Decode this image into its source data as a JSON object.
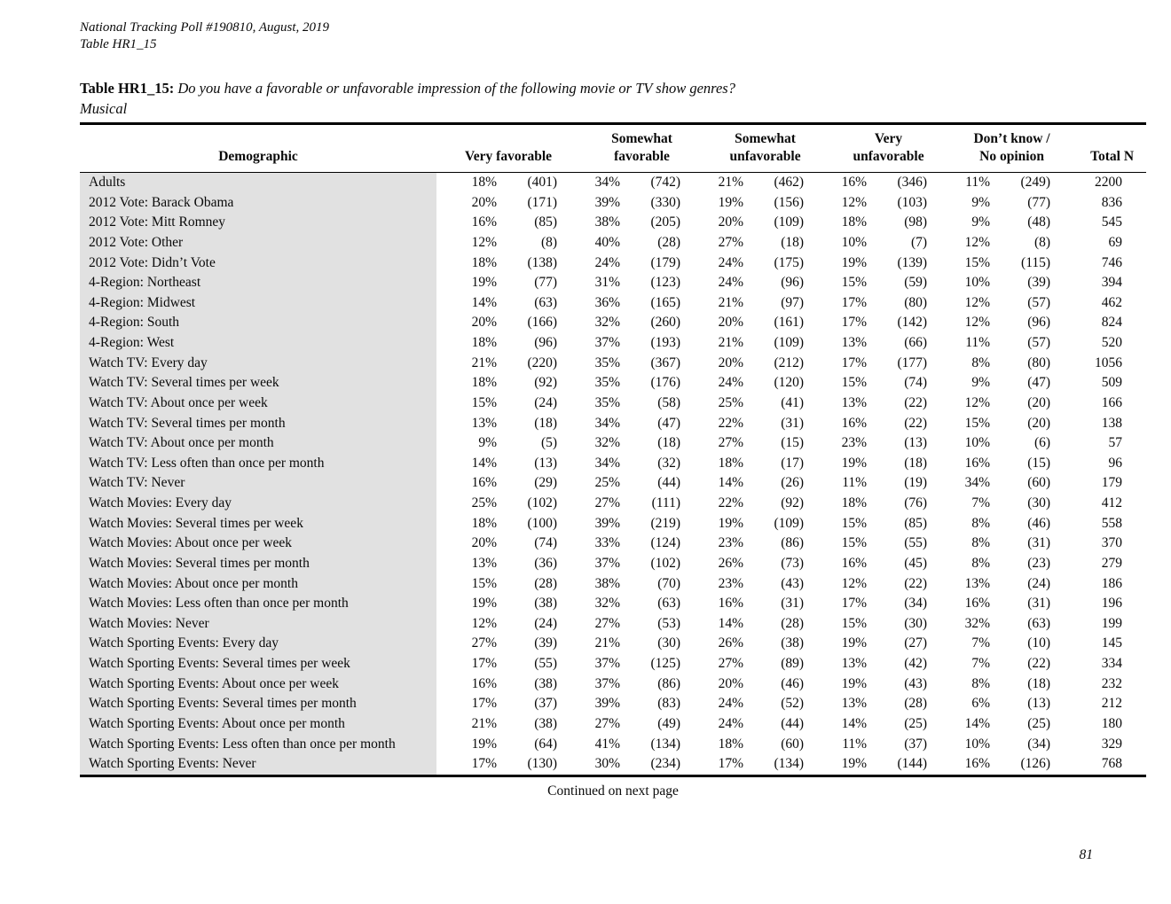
{
  "header": {
    "line1": "National Tracking Poll #190810, August, 2019",
    "line2": "Table HR1_15"
  },
  "title": {
    "label": "Table HR1_15:",
    "question": "Do you have a favorable or unfavorable impression of the following movie or TV show genres?",
    "subtitle": "Musical"
  },
  "table": {
    "columns": {
      "demographic": "Demographic",
      "groups": [
        {
          "line1": "",
          "line2": "Very favorable"
        },
        {
          "line1": "Somewhat",
          "line2": "favorable"
        },
        {
          "line1": "Somewhat",
          "line2": "unfavorable"
        },
        {
          "line1": "Very",
          "line2": "unfavorable"
        },
        {
          "line1": "Don’t know /",
          "line2": "No opinion"
        }
      ],
      "total": "Total N"
    },
    "rows": [
      {
        "demographic": "Adults",
        "cells": [
          "18%",
          "(401)",
          "34%",
          "(742)",
          "21%",
          "(462)",
          "16%",
          "(346)",
          "11%",
          "(249)"
        ],
        "total": "2200"
      },
      {
        "demographic": "2012 Vote: Barack Obama",
        "cells": [
          "20%",
          "(171)",
          "39%",
          "(330)",
          "19%",
          "(156)",
          "12%",
          "(103)",
          "9%",
          "(77)"
        ],
        "total": "836"
      },
      {
        "demographic": "2012 Vote: Mitt Romney",
        "cells": [
          "16%",
          "(85)",
          "38%",
          "(205)",
          "20%",
          "(109)",
          "18%",
          "(98)",
          "9%",
          "(48)"
        ],
        "total": "545"
      },
      {
        "demographic": "2012 Vote: Other",
        "cells": [
          "12%",
          "(8)",
          "40%",
          "(28)",
          "27%",
          "(18)",
          "10%",
          "(7)",
          "12%",
          "(8)"
        ],
        "total": "69"
      },
      {
        "demographic": "2012 Vote: Didn’t Vote",
        "cells": [
          "18%",
          "(138)",
          "24%",
          "(179)",
          "24%",
          "(175)",
          "19%",
          "(139)",
          "15%",
          "(115)"
        ],
        "total": "746"
      },
      {
        "demographic": "4-Region: Northeast",
        "cells": [
          "19%",
          "(77)",
          "31%",
          "(123)",
          "24%",
          "(96)",
          "15%",
          "(59)",
          "10%",
          "(39)"
        ],
        "total": "394"
      },
      {
        "demographic": "4-Region: Midwest",
        "cells": [
          "14%",
          "(63)",
          "36%",
          "(165)",
          "21%",
          "(97)",
          "17%",
          "(80)",
          "12%",
          "(57)"
        ],
        "total": "462"
      },
      {
        "demographic": "4-Region: South",
        "cells": [
          "20%",
          "(166)",
          "32%",
          "(260)",
          "20%",
          "(161)",
          "17%",
          "(142)",
          "12%",
          "(96)"
        ],
        "total": "824"
      },
      {
        "demographic": "4-Region: West",
        "cells": [
          "18%",
          "(96)",
          "37%",
          "(193)",
          "21%",
          "(109)",
          "13%",
          "(66)",
          "11%",
          "(57)"
        ],
        "total": "520"
      },
      {
        "demographic": "Watch TV: Every day",
        "cells": [
          "21%",
          "(220)",
          "35%",
          "(367)",
          "20%",
          "(212)",
          "17%",
          "(177)",
          "8%",
          "(80)"
        ],
        "total": "1056"
      },
      {
        "demographic": "Watch TV: Several times per week",
        "cells": [
          "18%",
          "(92)",
          "35%",
          "(176)",
          "24%",
          "(120)",
          "15%",
          "(74)",
          "9%",
          "(47)"
        ],
        "total": "509"
      },
      {
        "demographic": "Watch TV: About once per week",
        "cells": [
          "15%",
          "(24)",
          "35%",
          "(58)",
          "25%",
          "(41)",
          "13%",
          "(22)",
          "12%",
          "(20)"
        ],
        "total": "166"
      },
      {
        "demographic": "Watch TV: Several times per month",
        "cells": [
          "13%",
          "(18)",
          "34%",
          "(47)",
          "22%",
          "(31)",
          "16%",
          "(22)",
          "15%",
          "(20)"
        ],
        "total": "138"
      },
      {
        "demographic": "Watch TV: About once per month",
        "cells": [
          "9%",
          "(5)",
          "32%",
          "(18)",
          "27%",
          "(15)",
          "23%",
          "(13)",
          "10%",
          "(6)"
        ],
        "total": "57"
      },
      {
        "demographic": "Watch TV: Less often than once per month",
        "cells": [
          "14%",
          "(13)",
          "34%",
          "(32)",
          "18%",
          "(17)",
          "19%",
          "(18)",
          "16%",
          "(15)"
        ],
        "total": "96"
      },
      {
        "demographic": "Watch TV: Never",
        "cells": [
          "16%",
          "(29)",
          "25%",
          "(44)",
          "14%",
          "(26)",
          "11%",
          "(19)",
          "34%",
          "(60)"
        ],
        "total": "179"
      },
      {
        "demographic": "Watch Movies: Every day",
        "cells": [
          "25%",
          "(102)",
          "27%",
          "(111)",
          "22%",
          "(92)",
          "18%",
          "(76)",
          "7%",
          "(30)"
        ],
        "total": "412"
      },
      {
        "demographic": "Watch Movies: Several times per week",
        "cells": [
          "18%",
          "(100)",
          "39%",
          "(219)",
          "19%",
          "(109)",
          "15%",
          "(85)",
          "8%",
          "(46)"
        ],
        "total": "558"
      },
      {
        "demographic": "Watch Movies: About once per week",
        "cells": [
          "20%",
          "(74)",
          "33%",
          "(124)",
          "23%",
          "(86)",
          "15%",
          "(55)",
          "8%",
          "(31)"
        ],
        "total": "370"
      },
      {
        "demographic": "Watch Movies: Several times per month",
        "cells": [
          "13%",
          "(36)",
          "37%",
          "(102)",
          "26%",
          "(73)",
          "16%",
          "(45)",
          "8%",
          "(23)"
        ],
        "total": "279"
      },
      {
        "demographic": "Watch Movies: About once per month",
        "cells": [
          "15%",
          "(28)",
          "38%",
          "(70)",
          "23%",
          "(43)",
          "12%",
          "(22)",
          "13%",
          "(24)"
        ],
        "total": "186"
      },
      {
        "demographic": "Watch Movies: Less often than once per month",
        "cells": [
          "19%",
          "(38)",
          "32%",
          "(63)",
          "16%",
          "(31)",
          "17%",
          "(34)",
          "16%",
          "(31)"
        ],
        "total": "196"
      },
      {
        "demographic": "Watch Movies: Never",
        "cells": [
          "12%",
          "(24)",
          "27%",
          "(53)",
          "14%",
          "(28)",
          "15%",
          "(30)",
          "32%",
          "(63)"
        ],
        "total": "199"
      },
      {
        "demographic": "Watch Sporting Events: Every day",
        "cells": [
          "27%",
          "(39)",
          "21%",
          "(30)",
          "26%",
          "(38)",
          "19%",
          "(27)",
          "7%",
          "(10)"
        ],
        "total": "145"
      },
      {
        "demographic": "Watch Sporting Events: Several times per week",
        "cells": [
          "17%",
          "(55)",
          "37%",
          "(125)",
          "27%",
          "(89)",
          "13%",
          "(42)",
          "7%",
          "(22)"
        ],
        "total": "334"
      },
      {
        "demographic": "Watch Sporting Events: About once per week",
        "cells": [
          "16%",
          "(38)",
          "37%",
          "(86)",
          "20%",
          "(46)",
          "19%",
          "(43)",
          "8%",
          "(18)"
        ],
        "total": "232"
      },
      {
        "demographic": "Watch Sporting Events: Several times per month",
        "cells": [
          "17%",
          "(37)",
          "39%",
          "(83)",
          "24%",
          "(52)",
          "13%",
          "(28)",
          "6%",
          "(13)"
        ],
        "total": "212"
      },
      {
        "demographic": "Watch Sporting Events: About once per month",
        "cells": [
          "21%",
          "(38)",
          "27%",
          "(49)",
          "24%",
          "(44)",
          "14%",
          "(25)",
          "14%",
          "(25)"
        ],
        "total": "180"
      },
      {
        "demographic": "Watch Sporting Events: Less often than once per month",
        "cells": [
          "19%",
          "(64)",
          "41%",
          "(134)",
          "18%",
          "(60)",
          "11%",
          "(37)",
          "10%",
          "(34)"
        ],
        "total": "329"
      },
      {
        "demographic": "Watch Sporting Events: Never",
        "cells": [
          "17%",
          "(130)",
          "30%",
          "(234)",
          "17%",
          "(134)",
          "19%",
          "(144)",
          "16%",
          "(126)"
        ],
        "total": "768"
      }
    ]
  },
  "footer": {
    "continued": "Continued on next page",
    "page_number": "81"
  }
}
